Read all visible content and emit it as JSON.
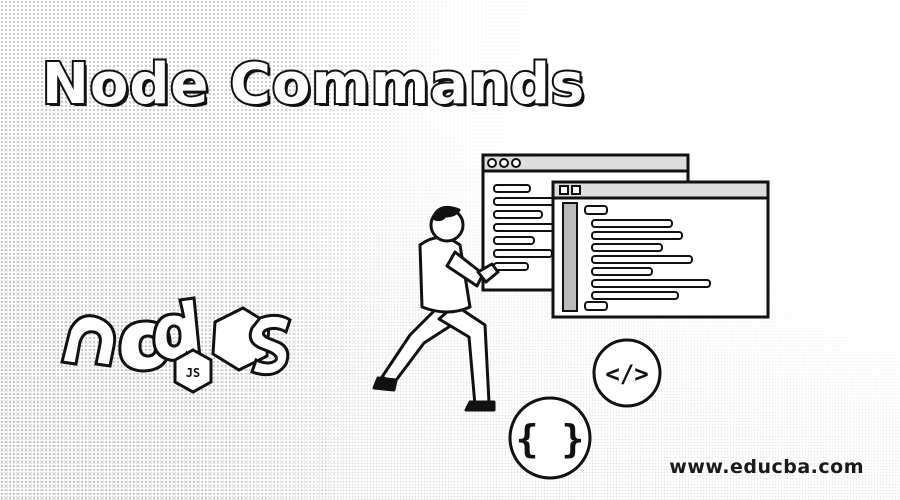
{
  "banner": {
    "title": "Node Commands",
    "website": "www.educba.com",
    "badge_code_tag": "</>",
    "badge_braces": "{ }"
  },
  "illustration": {
    "subject": "person kneeling and pointing at code windows",
    "logo": "node"
  },
  "colors": {
    "ink": "#111111",
    "paper": "#ffffff",
    "shade": "#9a9a9a"
  }
}
